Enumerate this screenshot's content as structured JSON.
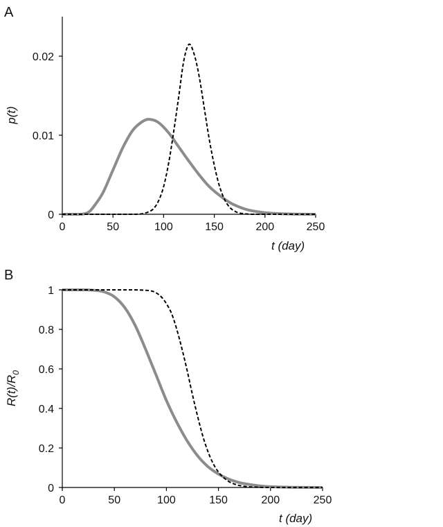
{
  "chart_data": [
    {
      "panel_label": "A",
      "type": "line",
      "xlabel": "t (day)",
      "ylabel": "p(t)",
      "xlim": [
        0,
        250
      ],
      "ylim": [
        0,
        0.025
      ],
      "x_ticks": [
        "0",
        "50",
        "100",
        "150",
        "200",
        "250"
      ],
      "y_ticks": [
        "0",
        "0.01",
        "0.02"
      ],
      "grid": false,
      "series": [
        {
          "style": "solid",
          "color": "#8c8c8c",
          "x": [
            0,
            10,
            20,
            25,
            30,
            40,
            50,
            60,
            70,
            80,
            87,
            95,
            105,
            115,
            125,
            135,
            145,
            155,
            165,
            175,
            185,
            200,
            215,
            230,
            250
          ],
          "y": [
            0,
            0,
            3e-05,
            0.0002,
            0.0008,
            0.0027,
            0.0056,
            0.0085,
            0.0107,
            0.0118,
            0.012,
            0.0116,
            0.0103,
            0.0085,
            0.0067,
            0.005,
            0.0035,
            0.0024,
            0.0015,
            0.0009,
            0.0005,
            0.0002,
            8e-05,
            3e-05,
            0
          ]
        },
        {
          "style": "dashed",
          "color": "#000000",
          "x": [
            0,
            60,
            75,
            80,
            85,
            90,
            95,
            100,
            105,
            110,
            115,
            120,
            125,
            130,
            135,
            140,
            145,
            150,
            155,
            160,
            165,
            170,
            175,
            185,
            200,
            250
          ],
          "y": [
            0,
            0,
            2e-05,
            0.0001,
            0.0003,
            0.0007,
            0.0017,
            0.0035,
            0.0065,
            0.0105,
            0.015,
            0.0195,
            0.0215,
            0.0203,
            0.0175,
            0.0135,
            0.0095,
            0.0062,
            0.0036,
            0.0019,
            0.0009,
            0.0004,
            0.00015,
            2e-05,
            0,
            0
          ]
        }
      ]
    },
    {
      "panel_label": "B",
      "type": "line",
      "xlabel": "t (day)",
      "ylabel": "R(t)/R0",
      "ylabel_main": "R(t)/R",
      "ylabel_sub": "0",
      "xlim": [
        0,
        250
      ],
      "ylim": [
        0,
        1
      ],
      "x_ticks": [
        "0",
        "50",
        "100",
        "150",
        "200",
        "250"
      ],
      "y_ticks": [
        "0",
        "0.2",
        "0.4",
        "0.6",
        "0.8",
        "1"
      ],
      "grid": false,
      "series": [
        {
          "style": "solid",
          "color": "#8c8c8c",
          "x": [
            0,
            20,
            30,
            40,
            50,
            60,
            70,
            80,
            90,
            100,
            110,
            120,
            130,
            140,
            150,
            160,
            170,
            180,
            190,
            200,
            220,
            250
          ],
          "y": [
            1,
            1,
            0.998,
            0.99,
            0.965,
            0.91,
            0.82,
            0.7,
            0.57,
            0.44,
            0.33,
            0.235,
            0.16,
            0.105,
            0.068,
            0.042,
            0.025,
            0.015,
            0.008,
            0.004,
            0.001,
            0
          ]
        },
        {
          "style": "dashed",
          "color": "#000000",
          "x": [
            0,
            60,
            75,
            85,
            90,
            95,
            100,
            105,
            110,
            115,
            120,
            125,
            130,
            135,
            140,
            145,
            150,
            155,
            160,
            165,
            170,
            180,
            190,
            200,
            250
          ],
          "y": [
            1,
            1,
            0.999,
            0.995,
            0.985,
            0.965,
            0.93,
            0.88,
            0.8,
            0.7,
            0.59,
            0.47,
            0.36,
            0.26,
            0.18,
            0.12,
            0.078,
            0.05,
            0.03,
            0.018,
            0.01,
            0.003,
            0.001,
            0,
            0
          ]
        }
      ]
    }
  ]
}
